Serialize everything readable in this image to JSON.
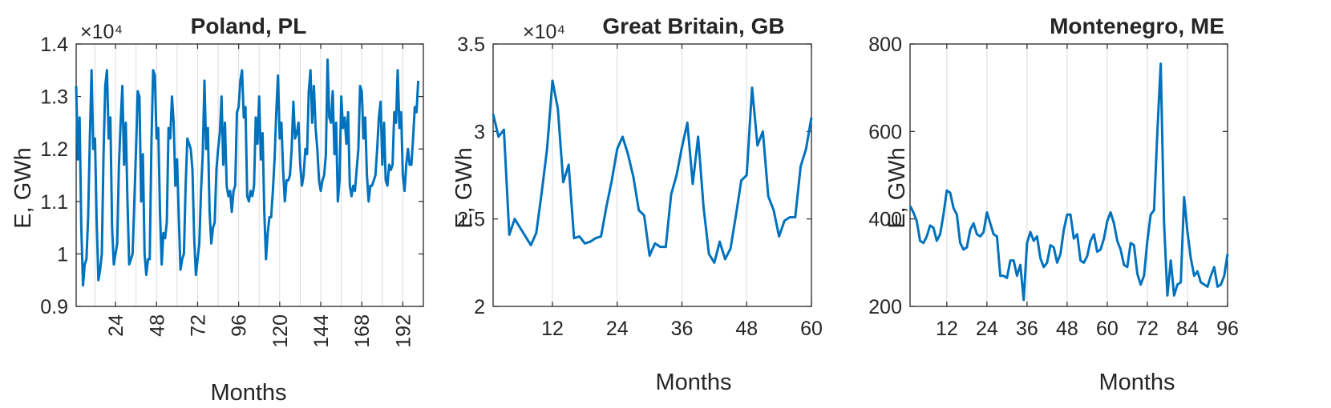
{
  "chart_data": [
    {
      "type": "line",
      "title": "Poland, PL",
      "xlabel": "Months",
      "ylabel": "E, GWh",
      "exponent_label": "×10⁴",
      "x_range": [
        1,
        204
      ],
      "ylim": [
        0.9,
        1.4
      ],
      "xticks": [
        24,
        48,
        72,
        96,
        120,
        144,
        168,
        192
      ],
      "yticks": [
        0.9,
        1.0,
        1.1,
        1.2,
        1.3,
        1.4
      ],
      "ytick_labels": [
        "0.9",
        "1",
        "1.1",
        "1.2",
        "1.3",
        "1.4"
      ],
      "xgrid_lines": [
        12,
        24,
        36,
        48,
        60,
        72,
        84,
        96,
        108,
        120,
        132,
        144,
        156,
        168,
        180,
        192
      ],
      "x_tick_rotation": "vertical",
      "line_color": "#0072BD",
      "series": [
        {
          "values": [
            1.32,
            1.18,
            1.26,
            1.05,
            0.94,
            0.98,
            0.99,
            1.07,
            1.22,
            1.35,
            1.2,
            1.22,
            1.06,
            0.95,
            0.97,
            1.0,
            1.19,
            1.32,
            1.35,
            1.22,
            1.26,
            1.05,
            0.98,
            1.0,
            1.02,
            1.17,
            1.25,
            1.32,
            1.17,
            1.25,
            1.1,
            0.98,
            0.99,
            1.0,
            1.1,
            1.2,
            1.31,
            1.3,
            1.1,
            1.19,
            1.0,
            0.96,
            0.99,
            0.99,
            1.21,
            1.35,
            1.34,
            1.22,
            1.24,
            1.08,
            0.98,
            1.04,
            1.03,
            1.06,
            1.24,
            1.22,
            1.3,
            1.25,
            1.13,
            1.18,
            1.07,
            0.97,
            0.99,
            1.0,
            1.13,
            1.22,
            1.21,
            1.2,
            1.16,
            1.03,
            0.96,
            0.99,
            1.02,
            1.12,
            1.19,
            1.33,
            1.2,
            1.24,
            1.08,
            1.02,
            1.05,
            1.06,
            1.16,
            1.2,
            1.23,
            1.3,
            1.17,
            1.25,
            1.13,
            1.11,
            1.12,
            1.08,
            1.12,
            1.13,
            1.27,
            1.28,
            1.33,
            1.35,
            1.26,
            1.28,
            1.11,
            1.1,
            1.12,
            1.11,
            1.13,
            1.26,
            1.21,
            1.3,
            1.18,
            1.23,
            1.08,
            0.99,
            1.04,
            1.07,
            1.07,
            1.12,
            1.18,
            1.27,
            1.34,
            1.22,
            1.25,
            1.16,
            1.1,
            1.14,
            1.14,
            1.15,
            1.2,
            1.29,
            1.22,
            1.23,
            1.25,
            1.17,
            1.13,
            1.15,
            1.2,
            1.19,
            1.31,
            1.35,
            1.25,
            1.32,
            1.24,
            1.2,
            1.14,
            1.12,
            1.14,
            1.15,
            1.19,
            1.37,
            1.26,
            1.25,
            1.31,
            1.19,
            1.25,
            1.1,
            1.14,
            1.3,
            1.24,
            1.26,
            1.21,
            1.27,
            1.13,
            1.11,
            1.13,
            1.12,
            1.16,
            1.2,
            1.32,
            1.31,
            1.22,
            1.26,
            1.15,
            1.1,
            1.13,
            1.13,
            1.14,
            1.15,
            1.2,
            1.26,
            1.29,
            1.17,
            1.25,
            1.14,
            1.13,
            1.17,
            1.16,
            1.17,
            1.27,
            1.25,
            1.35,
            1.24,
            1.27,
            1.15,
            1.12,
            1.17,
            1.2,
            1.17,
            1.17,
            1.22,
            1.28,
            1.27,
            1.33
          ]
        }
      ]
    },
    {
      "type": "line",
      "title": "Great Britain, GB",
      "xlabel": "Months",
      "ylabel": "E, GWh",
      "exponent_label": "×10⁴",
      "x_range": [
        1,
        60
      ],
      "ylim": [
        2.0,
        3.5
      ],
      "xticks": [
        12,
        24,
        36,
        48,
        60
      ],
      "yticks": [
        2.0,
        2.5,
        3.0,
        3.5
      ],
      "ytick_labels": [
        "2",
        "2.5",
        "3",
        "3.5"
      ],
      "xgrid_lines": [
        12,
        24,
        36,
        48
      ],
      "x_tick_rotation": "horizontal",
      "line_color": "#0072BD",
      "series": [
        {
          "values": [
            3.1,
            2.97,
            3.01,
            2.41,
            2.5,
            2.45,
            2.4,
            2.35,
            2.42,
            2.65,
            2.9,
            3.29,
            3.13,
            2.71,
            2.81,
            2.39,
            2.4,
            2.36,
            2.37,
            2.39,
            2.4,
            2.57,
            2.72,
            2.9,
            2.97,
            2.87,
            2.74,
            2.55,
            2.52,
            2.29,
            2.36,
            2.34,
            2.34,
            2.64,
            2.75,
            2.91,
            3.05,
            2.7,
            2.97,
            2.57,
            2.3,
            2.25,
            2.37,
            2.27,
            2.33,
            2.52,
            2.72,
            2.75,
            3.25,
            2.92,
            3.0,
            2.63,
            2.55,
            2.4,
            2.49,
            2.51,
            2.51,
            2.8,
            2.9,
            3.08
          ]
        }
      ]
    },
    {
      "type": "line",
      "title": "Montenegro, ME",
      "xlabel": "Months",
      "ylabel": "E, GWh",
      "x_range": [
        1,
        96
      ],
      "ylim": [
        200,
        800
      ],
      "xticks": [
        12,
        24,
        36,
        48,
        60,
        72,
        84,
        96
      ],
      "yticks": [
        200,
        400,
        600,
        800
      ],
      "ytick_labels": [
        "200",
        "400",
        "600",
        "800"
      ],
      "xgrid_lines": [
        12,
        24,
        36,
        48,
        60,
        72,
        84
      ],
      "x_tick_rotation": "horizontal",
      "line_color": "#0072BD",
      "series": [
        {
          "values": [
            430,
            415,
            395,
            350,
            345,
            360,
            385,
            380,
            350,
            365,
            410,
            465,
            460,
            425,
            410,
            345,
            330,
            335,
            375,
            390,
            365,
            360,
            370,
            415,
            390,
            365,
            360,
            270,
            270,
            265,
            305,
            305,
            270,
            295,
            215,
            345,
            370,
            350,
            360,
            310,
            290,
            300,
            340,
            335,
            300,
            320,
            375,
            410,
            410,
            355,
            365,
            305,
            300,
            315,
            350,
            365,
            325,
            330,
            355,
            395,
            415,
            390,
            350,
            330,
            295,
            290,
            345,
            340,
            275,
            250,
            270,
            350,
            410,
            420,
            600,
            755,
            390,
            225,
            305,
            225,
            250,
            255,
            450,
            370,
            310,
            270,
            280,
            255,
            250,
            245,
            270,
            290,
            245,
            250,
            270,
            320
          ]
        }
      ]
    }
  ]
}
